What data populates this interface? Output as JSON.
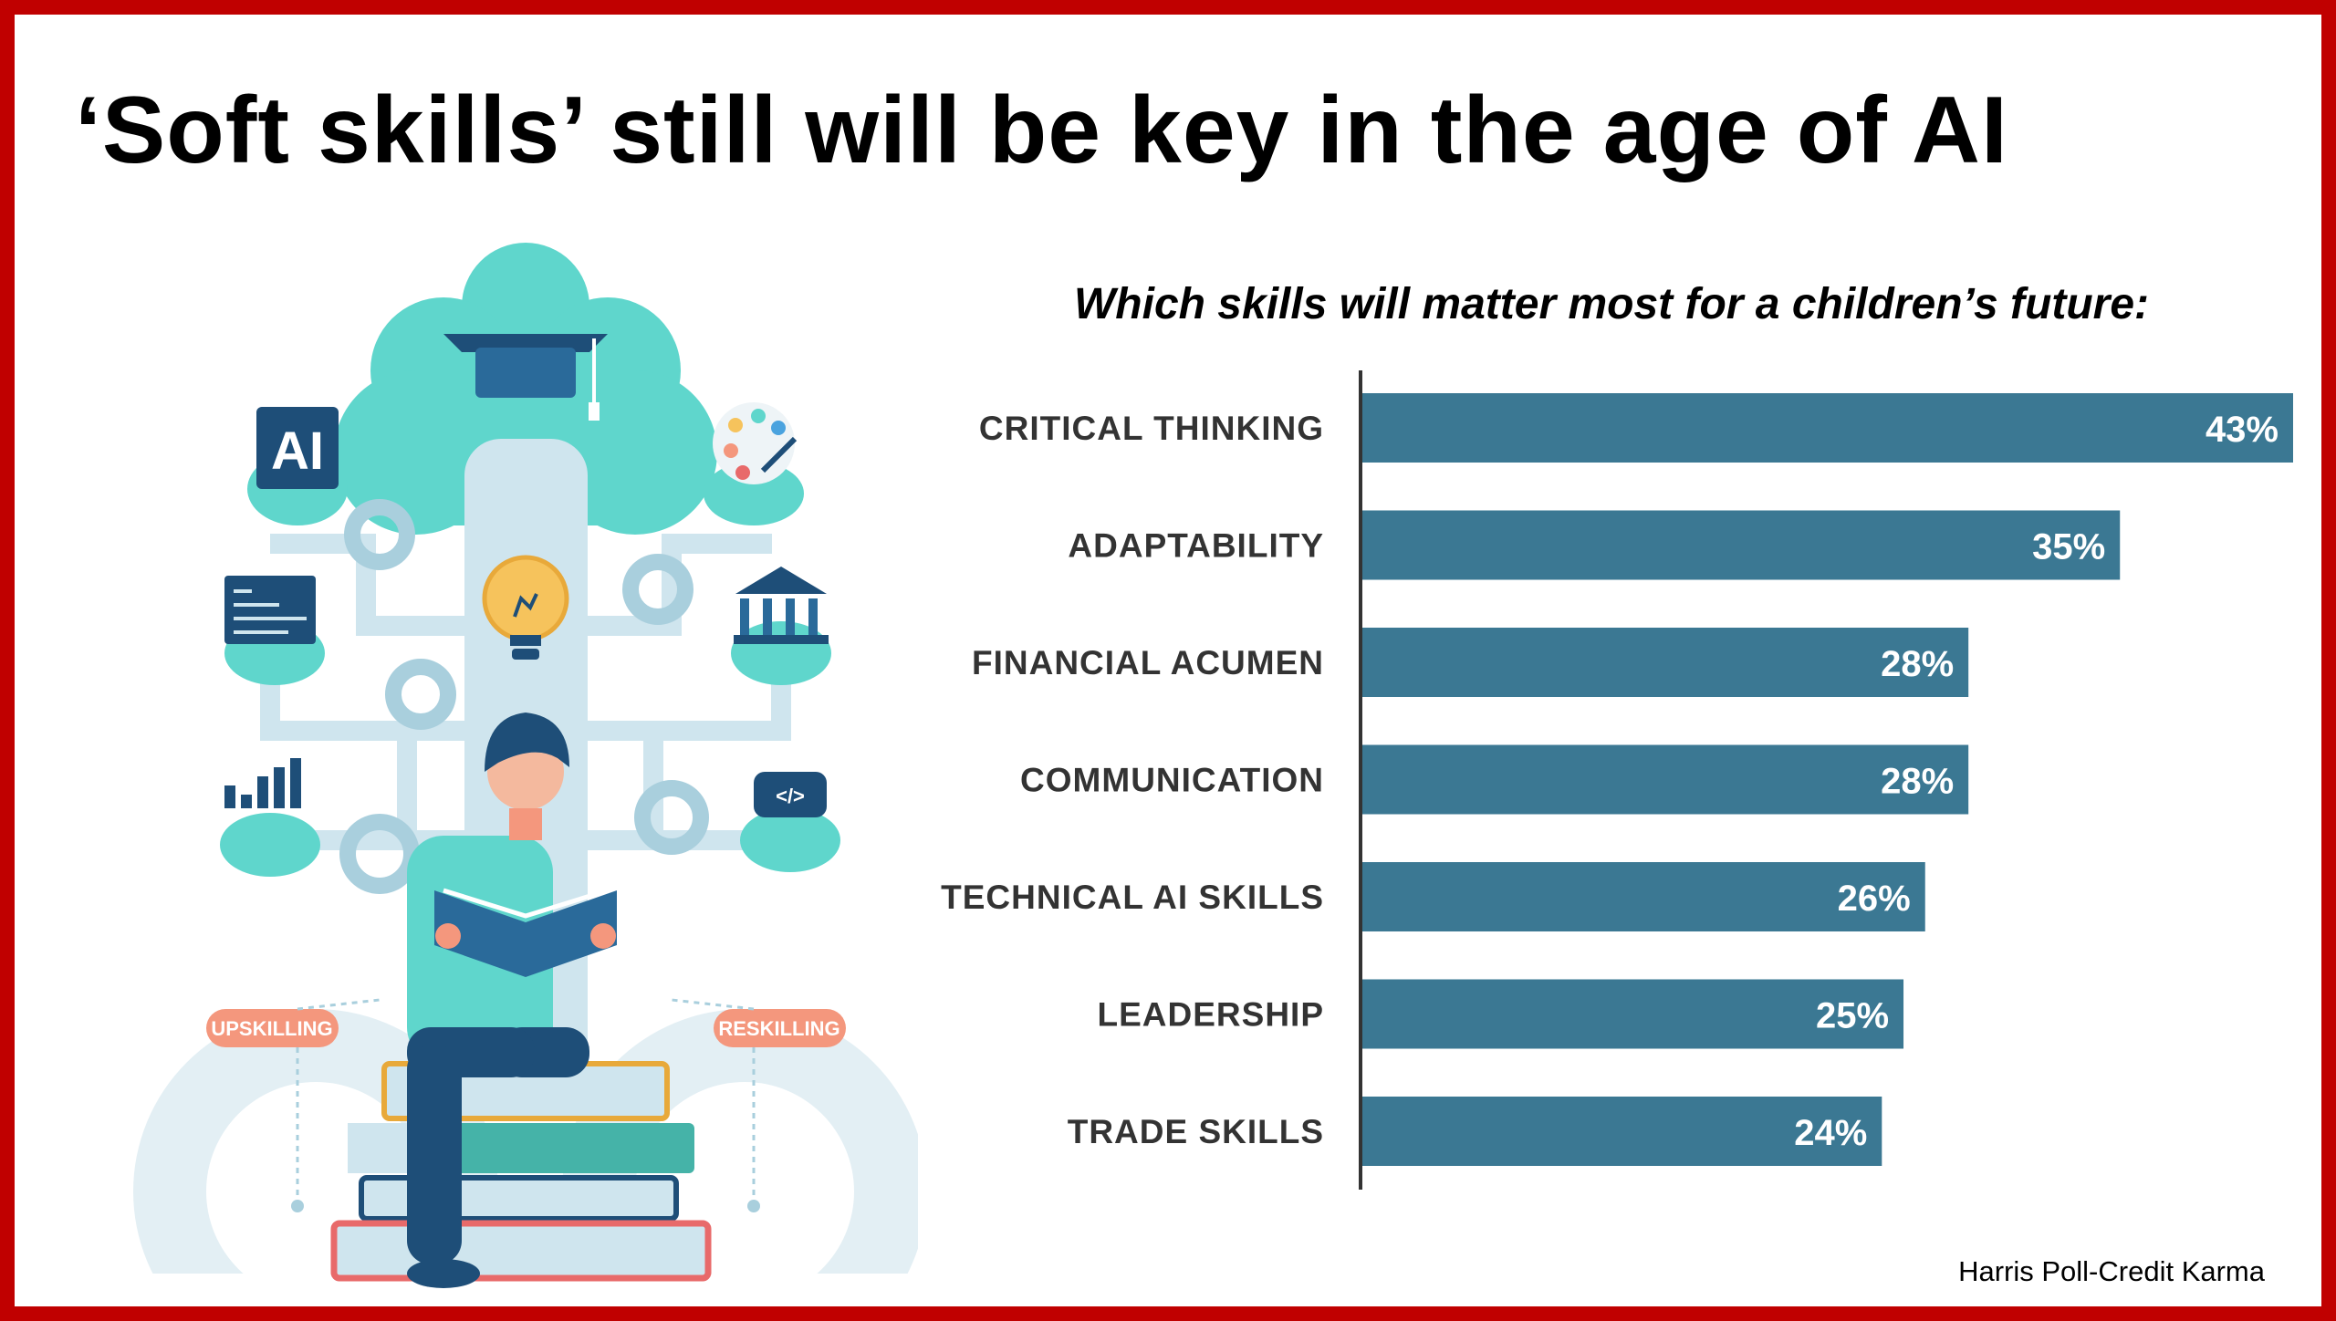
{
  "title": "‘Soft skills’ still will be key in the age of AI",
  "source": "Harris Poll-Credit Karma",
  "illustration": {
    "ai_badge": "AI",
    "left_tag": "UPSKILLING",
    "right_tag": "RESKILLING",
    "code_badge": "</>"
  },
  "colors": {
    "border": "#c00000",
    "bar": "#3b7893",
    "label": "#333333",
    "teal": "#5fd6cc",
    "light_blue": "#cfe5ee",
    "navy": "#1e4e78",
    "coral": "#f4977d"
  },
  "chart_data": {
    "type": "bar",
    "orientation": "horizontal",
    "title": "Which skills will matter most for a children’s future:",
    "categories": [
      "CRITICAL THINKING",
      "ADAPTABILITY",
      "FINANCIAL ACUMEN",
      "COMMUNICATION",
      "TECHNICAL AI SKILLS",
      "LEADERSHIP",
      "TRADE SKILLS"
    ],
    "values": [
      43,
      35,
      28,
      28,
      26,
      25,
      24
    ],
    "value_labels": [
      "43%",
      "35%",
      "28%",
      "28%",
      "26%",
      "25%",
      "24%"
    ],
    "unit": "%",
    "xlim": [
      0,
      43
    ],
    "grid": false,
    "legend": "none"
  }
}
